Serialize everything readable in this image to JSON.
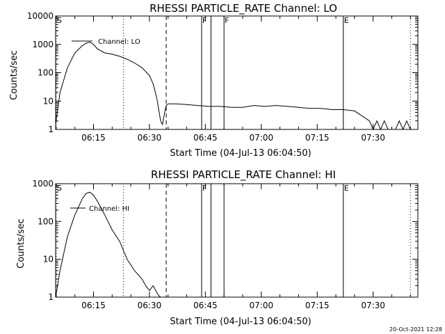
{
  "chart_data": [
    {
      "type": "line",
      "title": "RHESSI PARTICLE_RATE Channel: LO",
      "xlabel": "Start Time (04-Jul-13 06:04:50)",
      "ylabel": "Counts/sec",
      "yscale": "log",
      "xlim": [
        "06:04:50",
        "07:42:00"
      ],
      "ylim": [
        1,
        10000
      ],
      "x_ticks": [
        "06:15",
        "06:30",
        "06:45",
        "07:00",
        "07:15",
        "07:30"
      ],
      "y_ticks": [
        "1",
        "10",
        "100",
        "1000",
        "10000"
      ],
      "legend": {
        "entries": [
          "Channel: LO"
        ],
        "position": "top-left"
      },
      "series": [
        {
          "name": "Channel: LO",
          "x": [
            "06:04:50",
            "06:06:00",
            "06:08:00",
            "06:10:00",
            "06:12:00",
            "06:13:00",
            "06:14:00",
            "06:15:00",
            "06:16:00",
            "06:18:00",
            "06:20:00",
            "06:22:00",
            "06:24:00",
            "06:26:00",
            "06:28:00",
            "06:30:00",
            "06:31:00",
            "06:32:00",
            "06:32:30",
            "06:33:00",
            "06:33:30",
            "06:34:00",
            "06:34:30",
            "06:35:00",
            "06:37:00",
            "06:40:00",
            "06:43:00",
            "06:46:00",
            "06:49:00",
            "06:52:00",
            "06:55:00",
            "06:58:00",
            "07:01:00",
            "07:04:00",
            "07:07:00",
            "07:10:00",
            "07:13:00",
            "07:16:00",
            "07:19:00",
            "07:22:00",
            "07:25:00",
            "07:27:00",
            "07:29:00",
            "07:30:00",
            "07:31:00",
            "07:32:00",
            "07:33:00",
            "07:34:00",
            "07:35:00",
            "07:36:00",
            "07:37:00",
            "07:38:00",
            "07:39:00",
            "07:40:00"
          ],
          "y": [
            1.5,
            20,
            150,
            500,
            900,
            1100,
            1200,
            1000,
            700,
            500,
            450,
            380,
            300,
            220,
            150,
            80,
            40,
            12,
            5,
            2,
            1.5,
            3.5,
            7,
            8,
            8,
            7.5,
            7,
            6.5,
            6.5,
            6,
            6,
            7,
            6.5,
            7,
            6.5,
            6,
            5.5,
            5.5,
            5,
            5,
            4.5,
            3,
            2,
            1,
            2,
            1,
            2,
            1,
            1,
            1,
            2,
            1,
            2,
            1
          ]
        }
      ],
      "vertical_lines": [
        {
          "time": "06:05:00",
          "style": "dotted",
          "label": "S"
        },
        {
          "time": "06:23:00",
          "style": "dotted",
          "label": ""
        },
        {
          "time": "06:34:30",
          "style": "dashed",
          "label": ""
        },
        {
          "time": "06:44:00",
          "style": "solid",
          "label": "F"
        },
        {
          "time": "06:46:30",
          "style": "solid",
          "label": ""
        },
        {
          "time": "06:50:00",
          "style": "solid",
          "label": "F"
        },
        {
          "time": "07:22:00",
          "style": "solid",
          "label": "E"
        },
        {
          "time": "07:40:00",
          "style": "dotted",
          "label": ""
        }
      ]
    },
    {
      "type": "line",
      "title": "RHESSI PARTICLE_RATE Channel: HI",
      "xlabel": "Start Time (04-Jul-13 06:04:50)",
      "ylabel": "Counts/sec",
      "yscale": "log",
      "xlim": [
        "06:04:50",
        "07:42:00"
      ],
      "ylim": [
        1,
        1000
      ],
      "x_ticks": [
        "06:15",
        "06:30",
        "06:45",
        "07:00",
        "07:15",
        "07:30"
      ],
      "y_ticks": [
        "1",
        "10",
        "100",
        "1000"
      ],
      "legend": {
        "entries": [
          "Channel: HI"
        ],
        "position": "top-left"
      },
      "series": [
        {
          "name": "Channel: HI",
          "x": [
            "06:04:50",
            "06:06:00",
            "06:08:00",
            "06:10:00",
            "06:12:00",
            "06:13:00",
            "06:14:00",
            "06:15:00",
            "06:16:00",
            "06:18:00",
            "06:20:00",
            "06:22:00",
            "06:24:00",
            "06:26:00",
            "06:28:00",
            "06:29:00",
            "06:30:00",
            "06:31:00",
            "06:32:00",
            "06:32:30",
            "06:33:00"
          ],
          "y": [
            1,
            5,
            40,
            150,
            400,
            550,
            600,
            500,
            350,
            150,
            60,
            30,
            10,
            5,
            3,
            2,
            1.5,
            2,
            1.3,
            1.1,
            1
          ]
        }
      ],
      "vertical_lines": [
        {
          "time": "06:05:00",
          "style": "dotted",
          "label": "S"
        },
        {
          "time": "06:23:00",
          "style": "dotted",
          "label": ""
        },
        {
          "time": "06:34:30",
          "style": "dashed",
          "label": ""
        },
        {
          "time": "06:44:00",
          "style": "solid",
          "label": "F"
        },
        {
          "time": "06:46:30",
          "style": "solid",
          "label": ""
        },
        {
          "time": "06:50:00",
          "style": "solid",
          "label": ""
        },
        {
          "time": "07:22:00",
          "style": "solid",
          "label": "E"
        },
        {
          "time": "07:40:00",
          "style": "dotted",
          "label": ""
        }
      ]
    }
  ],
  "footer": {
    "timestamp": "20-Oct-2021 12:28"
  }
}
